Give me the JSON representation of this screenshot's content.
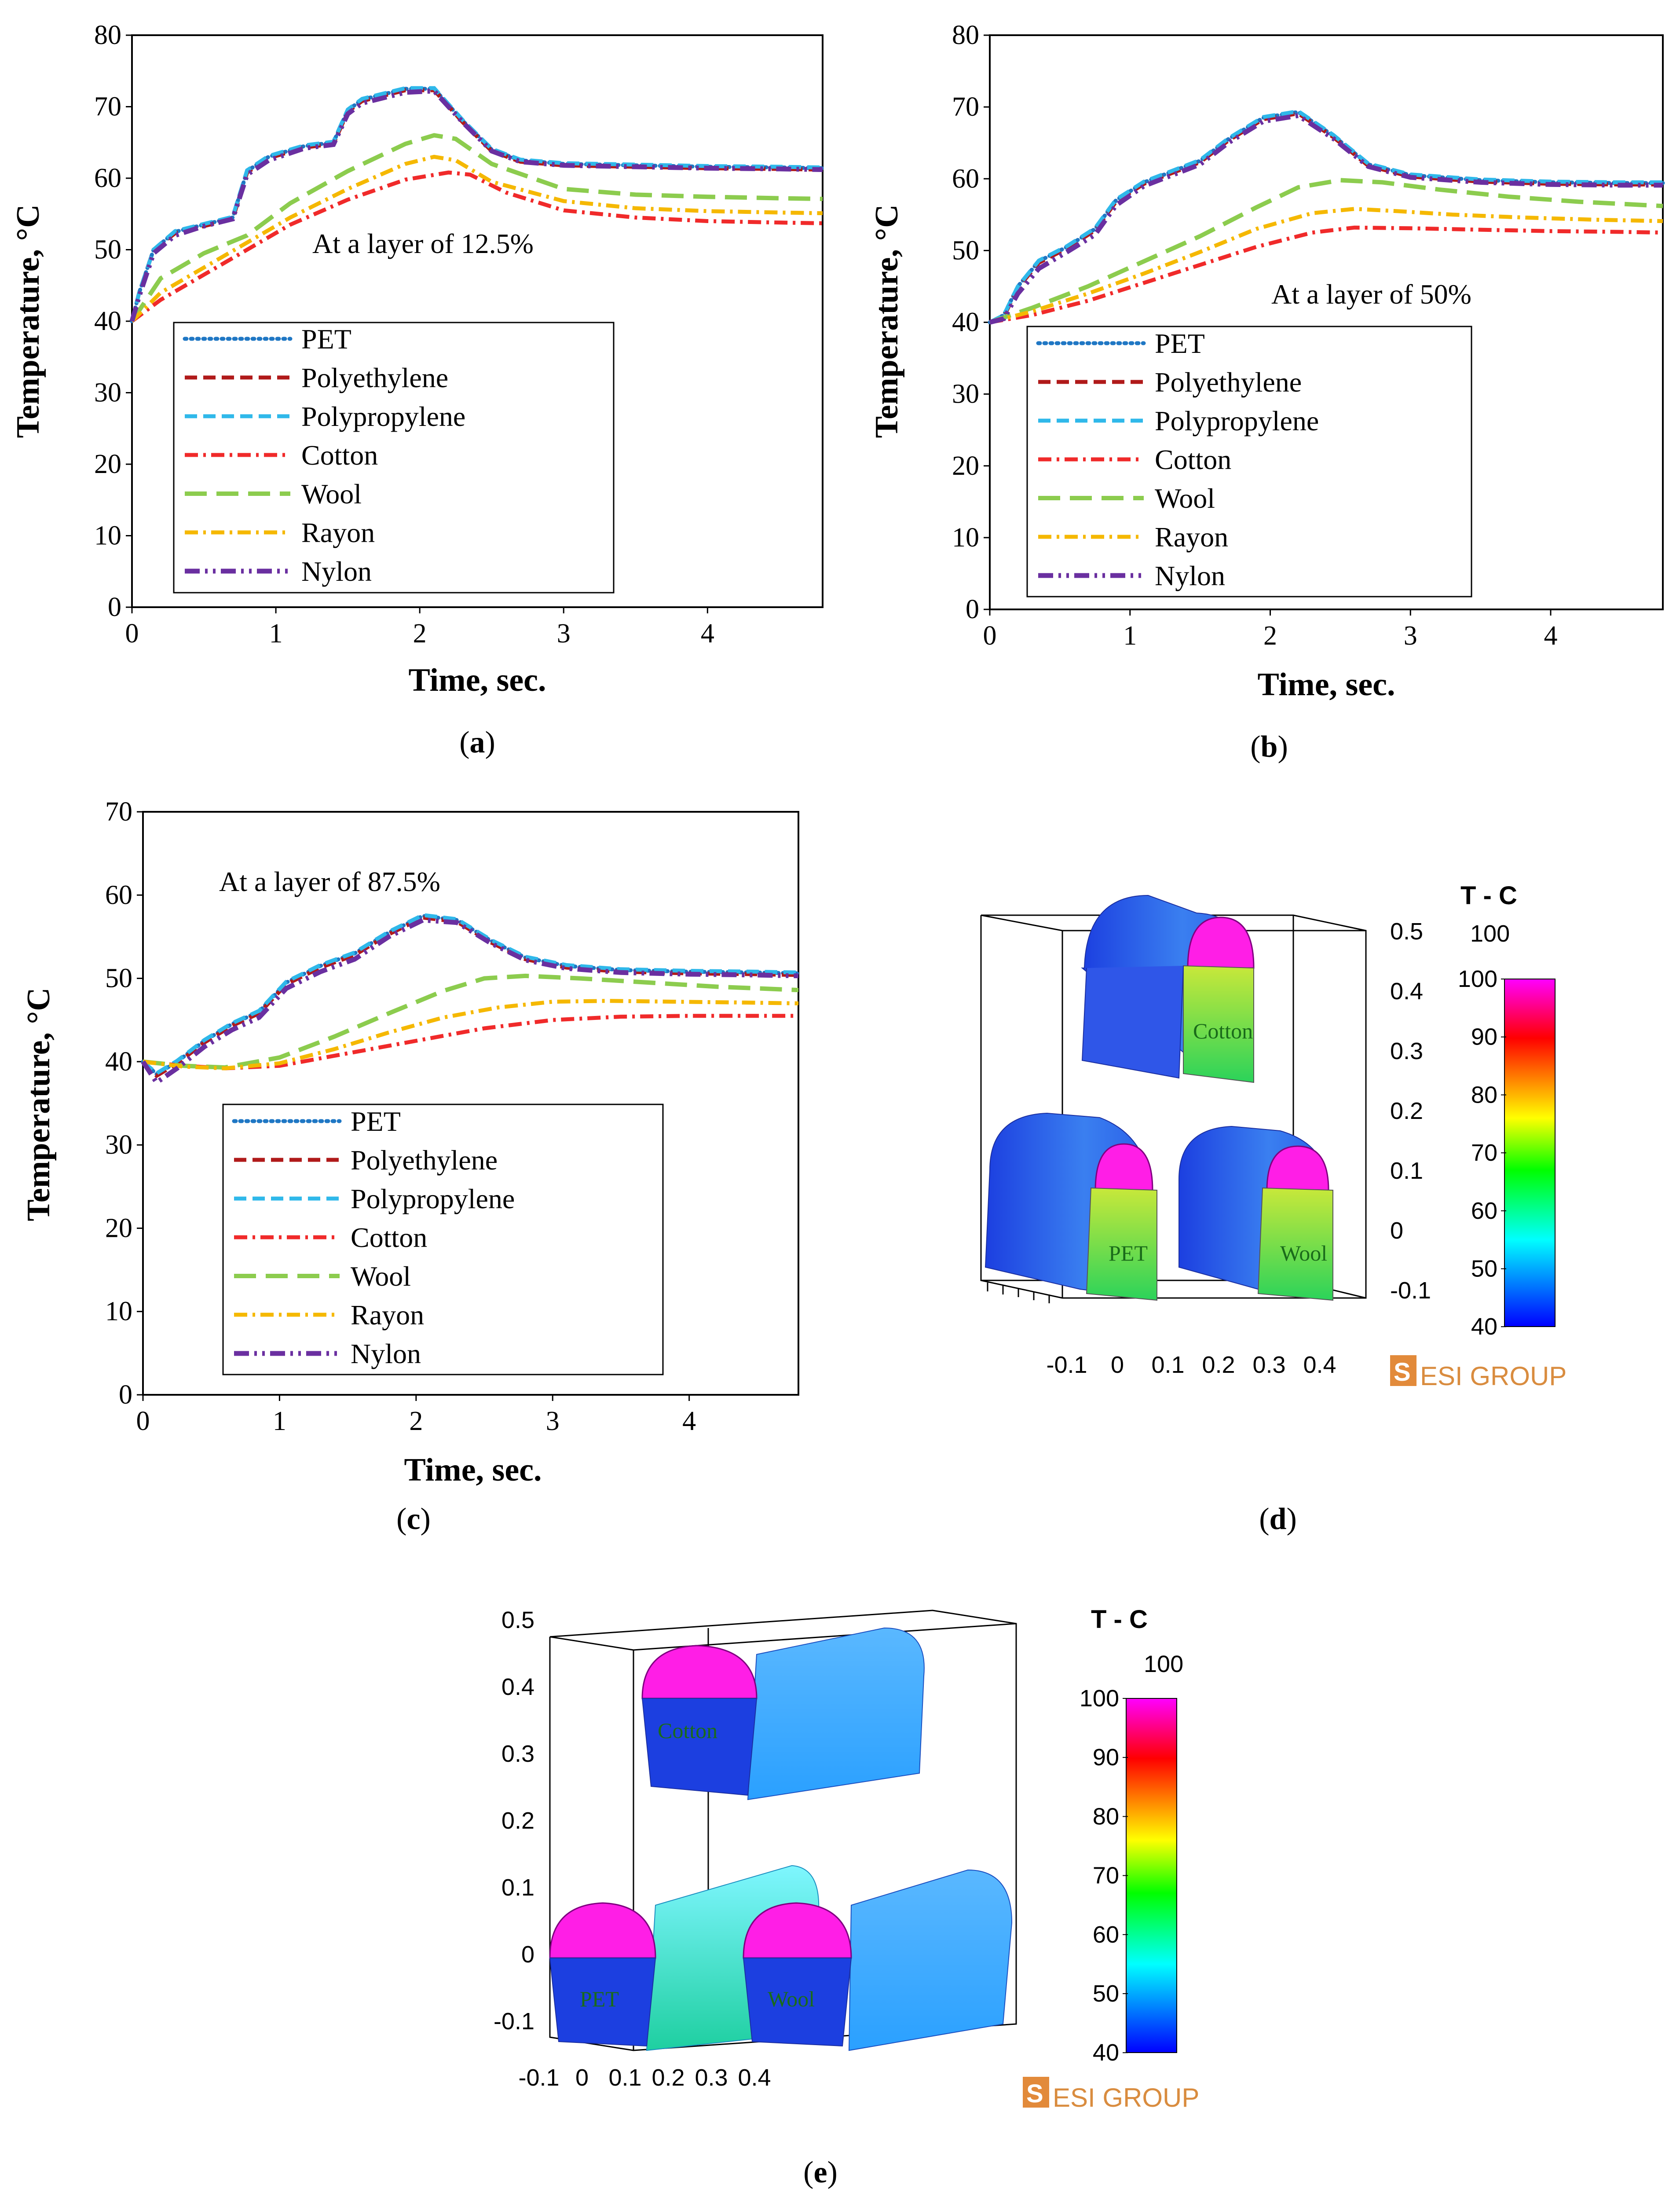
{
  "chart_data": [
    {
      "id": "a",
      "type": "line",
      "caption": "a",
      "annotation": "At a layer of 12.5%",
      "xlabel": "Time, sec.",
      "ylabel": "Temperature, °C",
      "xlim": [
        0,
        4.8
      ],
      "ylim": [
        0,
        80
      ],
      "xticks": [
        "0",
        "1",
        "2",
        "3",
        "4"
      ],
      "yticks": [
        "0",
        "10",
        "20",
        "30",
        "40",
        "50",
        "60",
        "70",
        "80"
      ],
      "series": [
        {
          "name": "PET",
          "x": [
            0,
            0.05,
            0.15,
            0.3,
            0.5,
            0.7,
            0.8,
            0.95,
            1.2,
            1.4,
            1.5,
            1.6,
            1.9,
            2.1,
            2.3,
            2.5,
            2.7,
            3.0,
            3.5,
            4.0,
            4.5,
            4.8
          ],
          "y": [
            40,
            44,
            50,
            52.5,
            53.5,
            54.5,
            61,
            63,
            64.5,
            65,
            69.5,
            71,
            72.5,
            72.5,
            68,
            64,
            62.5,
            62,
            61.8,
            61.6,
            61.5,
            61.4
          ]
        },
        {
          "name": "Polyethylene",
          "x": [
            0,
            0.05,
            0.15,
            0.3,
            0.5,
            0.7,
            0.8,
            0.95,
            1.2,
            1.4,
            1.5,
            1.6,
            1.9,
            2.1,
            2.3,
            2.5,
            2.7,
            3.0,
            3.5,
            4.0,
            4.5,
            4.8
          ],
          "y": [
            40,
            44,
            50,
            52.3,
            53.3,
            54.3,
            60.8,
            62.8,
            64.3,
            64.8,
            69.3,
            70.8,
            72.3,
            72.3,
            67.8,
            63.8,
            62.3,
            61.8,
            61.6,
            61.4,
            61.3,
            61.2
          ]
        },
        {
          "name": "Polypropylene",
          "x": [
            0,
            0.05,
            0.15,
            0.3,
            0.5,
            0.7,
            0.8,
            0.95,
            1.2,
            1.4,
            1.5,
            1.6,
            1.9,
            2.1,
            2.3,
            2.5,
            2.7,
            3.0,
            3.5,
            4.0,
            4.5,
            4.8
          ],
          "y": [
            40,
            44,
            50,
            52.6,
            53.6,
            54.6,
            61.1,
            63.1,
            64.6,
            65.1,
            69.6,
            71.1,
            72.6,
            72.6,
            68.1,
            64.1,
            62.6,
            62.1,
            61.9,
            61.7,
            61.6,
            61.5
          ]
        },
        {
          "name": "Cotton",
          "x": [
            0,
            0.2,
            0.5,
            0.8,
            1.1,
            1.5,
            1.9,
            2.2,
            2.35,
            2.6,
            3.0,
            3.5,
            4.0,
            4.5,
            4.8
          ],
          "y": [
            40,
            43,
            46.5,
            50,
            53.5,
            57,
            59.8,
            60.8,
            60.5,
            58,
            55.5,
            54.5,
            54,
            53.8,
            53.7
          ]
        },
        {
          "name": "Wool",
          "x": [
            0,
            0.2,
            0.5,
            0.8,
            1.1,
            1.5,
            1.9,
            2.1,
            2.25,
            2.5,
            3.0,
            3.5,
            4.0,
            4.5,
            4.8
          ],
          "y": [
            40,
            46,
            49.5,
            52,
            56.5,
            61,
            64.8,
            66,
            65.5,
            62,
            58.5,
            57.7,
            57.4,
            57.2,
            57.1
          ]
        },
        {
          "name": "Rayon",
          "x": [
            0,
            0.2,
            0.5,
            0.8,
            1.1,
            1.5,
            1.9,
            2.1,
            2.25,
            2.5,
            3.0,
            3.5,
            4.0,
            4.5,
            4.8
          ],
          "y": [
            40,
            44,
            47.5,
            51,
            54.5,
            58.5,
            62,
            63,
            62.5,
            59.5,
            56.8,
            55.8,
            55.4,
            55.2,
            55.1
          ]
        },
        {
          "name": "Nylon",
          "x": [
            0,
            0.05,
            0.15,
            0.3,
            0.5,
            0.7,
            0.8,
            0.95,
            1.2,
            1.4,
            1.5,
            1.6,
            1.9,
            2.1,
            2.3,
            2.5,
            2.7,
            3.0,
            3.5,
            4.0,
            4.5,
            4.8
          ],
          "y": [
            40,
            43.5,
            49.5,
            52,
            53.3,
            54.3,
            60.5,
            62.5,
            64.2,
            64.7,
            69,
            70.5,
            72,
            72.2,
            67.8,
            63.8,
            62.3,
            61.8,
            61.6,
            61.4,
            61.3,
            61.2
          ]
        }
      ]
    },
    {
      "id": "b",
      "type": "line",
      "caption": "b",
      "annotation": "At a layer of 50%",
      "xlabel": "Time, sec.",
      "ylabel": "Temperature, °C",
      "xlim": [
        0,
        4.8
      ],
      "ylim": [
        0,
        80
      ],
      "xticks": [
        "0",
        "1",
        "2",
        "3",
        "4"
      ],
      "yticks": [
        "0",
        "10",
        "20",
        "30",
        "40",
        "50",
        "60",
        "70",
        "80"
      ],
      "series": [
        {
          "name": "PET",
          "x": [
            0,
            0.1,
            0.2,
            0.35,
            0.55,
            0.75,
            0.9,
            1.1,
            1.3,
            1.5,
            1.7,
            1.95,
            2.2,
            2.45,
            2.7,
            3.0,
            3.5,
            4.0,
            4.5,
            4.8
          ],
          "y": [
            40,
            41,
            45,
            48.5,
            50.5,
            53,
            57,
            59.5,
            61,
            62.5,
            65.5,
            68.5,
            69.3,
            66,
            62,
            60.5,
            59.8,
            59.5,
            59.4,
            59.4
          ]
        },
        {
          "name": "Polyethylene",
          "x": [
            0,
            0.1,
            0.2,
            0.35,
            0.55,
            0.75,
            0.9,
            1.1,
            1.3,
            1.5,
            1.7,
            1.95,
            2.2,
            2.45,
            2.7,
            3.0,
            3.5,
            4.0,
            4.5,
            4.8
          ],
          "y": [
            40,
            40.8,
            44.8,
            48.3,
            50.3,
            52.8,
            56.8,
            59.3,
            60.8,
            62.3,
            65.3,
            68.3,
            69.1,
            65.8,
            61.8,
            60.3,
            59.6,
            59.3,
            59.2,
            59.2
          ]
        },
        {
          "name": "Polypropylene",
          "x": [
            0,
            0.1,
            0.2,
            0.35,
            0.55,
            0.75,
            0.9,
            1.1,
            1.3,
            1.5,
            1.7,
            1.95,
            2.2,
            2.45,
            2.7,
            3.0,
            3.5,
            4.0,
            4.5,
            4.8
          ],
          "y": [
            40,
            41,
            45,
            48.6,
            50.6,
            53.1,
            57.1,
            59.6,
            61.1,
            62.6,
            65.6,
            68.6,
            69.4,
            66.1,
            62.1,
            60.6,
            59.9,
            59.6,
            59.5,
            59.5
          ]
        },
        {
          "name": "Cotton",
          "x": [
            0,
            0.3,
            0.7,
            1.1,
            1.5,
            1.9,
            2.3,
            2.6,
            3.0,
            3.5,
            4.0,
            4.5,
            4.8
          ],
          "y": [
            40,
            41,
            43,
            45.5,
            48,
            50.5,
            52.5,
            53.2,
            53.1,
            52.9,
            52.7,
            52.6,
            52.5
          ]
        },
        {
          "name": "Wool",
          "x": [
            0,
            0.3,
            0.7,
            1.1,
            1.5,
            1.9,
            2.2,
            2.5,
            2.8,
            3.2,
            3.7,
            4.2,
            4.8
          ],
          "y": [
            40,
            42,
            45,
            48.5,
            52,
            56,
            58.8,
            59.8,
            59.5,
            58.5,
            57.5,
            56.8,
            56.2
          ]
        },
        {
          "name": "Rayon",
          "x": [
            0,
            0.3,
            0.7,
            1.1,
            1.5,
            1.9,
            2.3,
            2.6,
            2.9,
            3.3,
            3.8,
            4.3,
            4.8
          ],
          "y": [
            40,
            41.5,
            44,
            46.8,
            49.8,
            53,
            55.2,
            55.8,
            55.5,
            55,
            54.6,
            54.3,
            54.1
          ]
        },
        {
          "name": "Nylon",
          "x": [
            0,
            0.1,
            0.2,
            0.35,
            0.55,
            0.75,
            0.9,
            1.1,
            1.3,
            1.5,
            1.7,
            1.95,
            2.2,
            2.45,
            2.7,
            3.0,
            3.5,
            4.0,
            4.5,
            4.8
          ],
          "y": [
            40,
            40.5,
            44,
            47.5,
            49.8,
            52.2,
            56.3,
            59,
            60.5,
            62,
            65,
            68,
            68.8,
            65.6,
            61.7,
            60.2,
            59.5,
            59.2,
            59.1,
            59.1
          ]
        }
      ]
    },
    {
      "id": "c",
      "type": "line",
      "caption": "c",
      "annotation": "At a layer of 87.5%",
      "xlabel": "Time, sec.",
      "ylabel": "Temperature, °C",
      "xlim": [
        0,
        4.8
      ],
      "ylim": [
        0,
        70
      ],
      "xticks": [
        "0",
        "1",
        "2",
        "3",
        "4"
      ],
      "yticks": [
        "0",
        "10",
        "20",
        "30",
        "40",
        "50",
        "60",
        "70"
      ],
      "series": [
        {
          "name": "PET",
          "x": [
            0,
            0.1,
            0.25,
            0.45,
            0.65,
            0.85,
            1.05,
            1.3,
            1.55,
            1.8,
            2.05,
            2.3,
            2.55,
            2.8,
            3.1,
            3.5,
            4.0,
            4.5,
            4.8
          ],
          "y": [
            40,
            38.5,
            40,
            42.5,
            44.5,
            46,
            49.5,
            51.5,
            53,
            55.5,
            57.5,
            57,
            54.5,
            52.5,
            51.5,
            51,
            50.8,
            50.7,
            50.6
          ]
        },
        {
          "name": "Polyethylene",
          "x": [
            0,
            0.1,
            0.25,
            0.45,
            0.65,
            0.85,
            1.05,
            1.3,
            1.55,
            1.8,
            2.05,
            2.3,
            2.55,
            2.8,
            3.1,
            3.5,
            4.0,
            4.5,
            4.8
          ],
          "y": [
            40,
            38.3,
            39.8,
            42.3,
            44.3,
            45.8,
            49.3,
            51.3,
            52.8,
            55.3,
            57.3,
            56.8,
            54.3,
            52.3,
            51.3,
            50.8,
            50.6,
            50.5,
            50.4
          ]
        },
        {
          "name": "Polypropylene",
          "x": [
            0,
            0.1,
            0.25,
            0.45,
            0.65,
            0.85,
            1.05,
            1.3,
            1.55,
            1.8,
            2.05,
            2.3,
            2.55,
            2.8,
            3.1,
            3.5,
            4.0,
            4.5,
            4.8
          ],
          "y": [
            40,
            38.6,
            40.1,
            42.6,
            44.6,
            46.1,
            49.6,
            51.6,
            53.1,
            55.6,
            57.6,
            57.1,
            54.6,
            52.6,
            51.6,
            51.1,
            50.9,
            50.8,
            50.7
          ]
        },
        {
          "name": "Cotton",
          "x": [
            0,
            0.3,
            0.6,
            1.0,
            1.5,
            2.0,
            2.5,
            3.0,
            3.5,
            4.0,
            4.5,
            4.8
          ],
          "y": [
            40,
            39.5,
            39.2,
            39.5,
            41,
            42.5,
            44,
            45,
            45.4,
            45.5,
            45.5,
            45.5
          ]
        },
        {
          "name": "Wool",
          "x": [
            0,
            0.3,
            0.6,
            1.0,
            1.4,
            1.8,
            2.2,
            2.5,
            2.8,
            3.2,
            3.7,
            4.2,
            4.8
          ],
          "y": [
            40,
            39.5,
            39.3,
            40.5,
            43,
            45.8,
            48.5,
            50,
            50.3,
            50,
            49.5,
            49,
            48.6
          ]
        },
        {
          "name": "Rayon",
          "x": [
            0,
            0.3,
            0.6,
            1.0,
            1.4,
            1.8,
            2.2,
            2.6,
            3.0,
            3.4,
            3.9,
            4.4,
            4.8
          ],
          "y": [
            40,
            39.4,
            39.2,
            39.8,
            41.5,
            43.5,
            45.3,
            46.5,
            47.2,
            47.3,
            47.2,
            47.1,
            47
          ]
        },
        {
          "name": "Nylon",
          "x": [
            0,
            0.1,
            0.25,
            0.45,
            0.65,
            0.85,
            1.05,
            1.3,
            1.55,
            1.8,
            2.05,
            2.3,
            2.55,
            2.8,
            3.1,
            3.5,
            4.0,
            4.5,
            4.8
          ],
          "y": [
            40,
            37.5,
            39.2,
            41.8,
            43.8,
            45.3,
            48.8,
            50.8,
            52.3,
            55,
            57,
            56.7,
            54.2,
            52.2,
            51.2,
            50.7,
            50.5,
            50.4,
            50.3
          ]
        }
      ]
    }
  ],
  "legend": [
    {
      "name": "PET",
      "color": "#1f77c4",
      "dash": "dot"
    },
    {
      "name": "Polyethylene",
      "color": "#b01a1a",
      "dash": "dash"
    },
    {
      "name": "Polypropylene",
      "color": "#2fb8ea",
      "dash": "dash"
    },
    {
      "name": "Cotton",
      "color": "#f02a2a",
      "dash": "dashdot"
    },
    {
      "name": "Wool",
      "color": "#8ccc4e",
      "dash": "longdash"
    },
    {
      "name": "Rayon",
      "color": "#f5b800",
      "dash": "dashdot"
    },
    {
      "name": "Nylon",
      "color": "#6a2fa0",
      "dash": "dashdotdot"
    }
  ],
  "sim_d": {
    "caption": "d",
    "colorbar_title": "T - C",
    "colorbar_top": "100",
    "colorbar_ticks": [
      "100",
      "90",
      "80",
      "70",
      "60",
      "50",
      "40"
    ],
    "z_ticks": [
      "0.5",
      "0.4",
      "0.3",
      "0.2",
      "0.1",
      "0",
      "-0.1"
    ],
    "x_ticks": [
      "-0.1",
      "0",
      "0.1",
      "0.2",
      "0.3",
      "0.4"
    ],
    "labels": [
      "Cotton",
      "PET",
      "Wool"
    ],
    "logo": "ESI GROUP"
  },
  "sim_e": {
    "caption": "e",
    "colorbar_title": "T - C",
    "colorbar_top": "100",
    "colorbar_ticks": [
      "100",
      "90",
      "80",
      "70",
      "60",
      "50",
      "40"
    ],
    "z_ticks": [
      "0.5",
      "0.4",
      "0.3",
      "0.2",
      "0.1",
      "0",
      "-0.1"
    ],
    "x_ticks": [
      "-0.1",
      "0",
      "0.1",
      "0.2",
      "0.3",
      "0.4"
    ],
    "labels": [
      "Cotton",
      "PET",
      "Wool"
    ],
    "logo": "ESI GROUP"
  }
}
